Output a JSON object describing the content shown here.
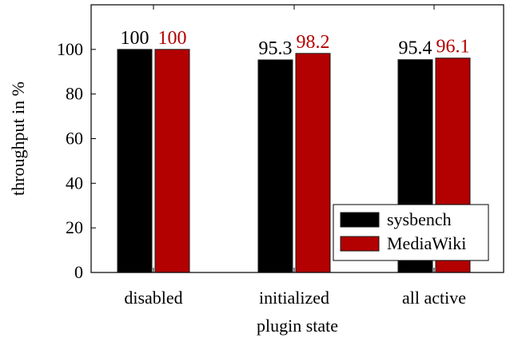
{
  "chart_data": {
    "type": "bar",
    "title": "",
    "xlabel": "plugin state",
    "ylabel": "throughput in %",
    "categories": [
      "disabled",
      "initialized",
      "all active"
    ],
    "ylim": [
      0,
      120
    ],
    "yticks": [
      0,
      20,
      40,
      60,
      80,
      100
    ],
    "grid": false,
    "legend_position": "bottom-right",
    "series": [
      {
        "name": "sysbench",
        "values": [
          100,
          95.3,
          95.4
        ],
        "labels": [
          "100",
          "95.3",
          "95.4"
        ],
        "color": "#000000",
        "label_color": "#000000"
      },
      {
        "name": "MediaWiki",
        "values": [
          100,
          98.2,
          96.1
        ],
        "labels": [
          "100",
          "98.2",
          "96.1"
        ],
        "color": "#b30000",
        "label_color": "#b30000"
      }
    ]
  }
}
